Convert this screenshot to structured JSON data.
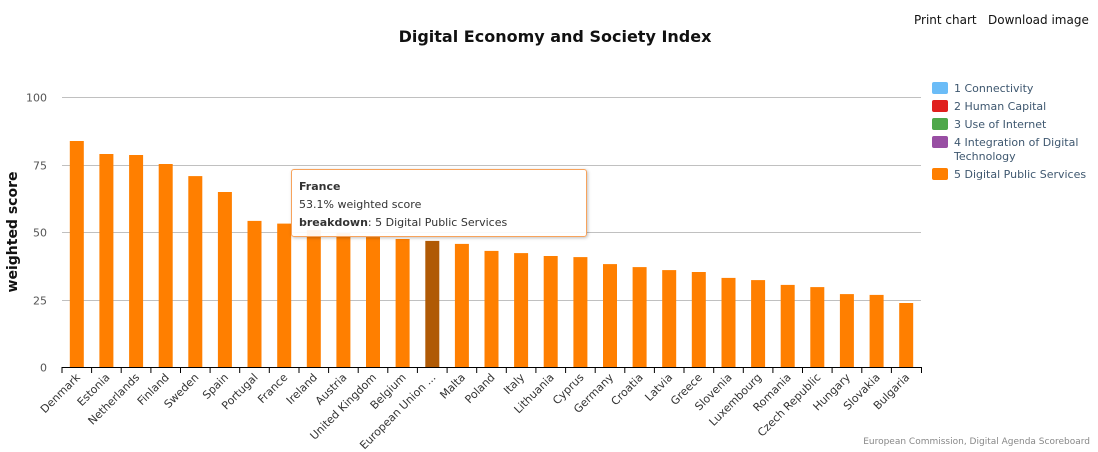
{
  "export_menu": {
    "print_label": "Print chart",
    "download_label": "Download image"
  },
  "legend": [
    {
      "label": "1 Connectivity",
      "color": "#6bbcf7"
    },
    {
      "label": "2 Human Capital",
      "color": "#e0201e"
    },
    {
      "label": "3 Use of Internet",
      "color": "#4ea84a"
    },
    {
      "label": "4 Integration of Digital Technology",
      "color": "#984ea3"
    },
    {
      "label": "5 Digital Public Services",
      "color": "#ff7f00"
    }
  ],
  "tooltip": {
    "country": "France",
    "value_text": "53.1% weighted score",
    "breakdown_label": "breakdown",
    "breakdown_value": ": 5 Digital Public Services"
  },
  "credits": "European Commission, Digital Agenda Scoreboard",
  "chart_data": {
    "type": "bar",
    "title": "Digital Economy and Society Index",
    "xlabel": "",
    "ylabel": "weighted score",
    "ylim": [
      0,
      100
    ],
    "yticks": [
      0,
      25,
      50,
      75,
      100
    ],
    "grid": true,
    "legend_position": "right",
    "bar_color": "#ff7f00",
    "highlight_color": "#b05a05",
    "highlight_category": "European Union ...",
    "categories": [
      "Denmark",
      "Estonia",
      "Netherlands",
      "Finland",
      "Sweden",
      "Spain",
      "Portugal",
      "France",
      "Ireland",
      "Austria",
      "United Kingdom",
      "Belgium",
      "European Union ...",
      "Malta",
      "Poland",
      "Italy",
      "Lithuania",
      "Cyprus",
      "Germany",
      "Croatia",
      "Latvia",
      "Greece",
      "Slovenia",
      "Luxembourg",
      "Romania",
      "Czech Republic",
      "Hungary",
      "Slovakia",
      "Bulgaria"
    ],
    "series": [
      {
        "name": "5 Digital Public Services",
        "values": [
          83.7,
          78.9,
          78.5,
          75.2,
          70.7,
          64.8,
          54.1,
          53.1,
          50.7,
          49.6,
          48.1,
          47.4,
          46.7,
          45.6,
          43.0,
          42.2,
          41.1,
          40.7,
          38.1,
          37.0,
          35.9,
          35.2,
          33.0,
          32.2,
          30.4,
          29.6,
          27.0,
          26.7,
          23.7
        ]
      }
    ]
  }
}
